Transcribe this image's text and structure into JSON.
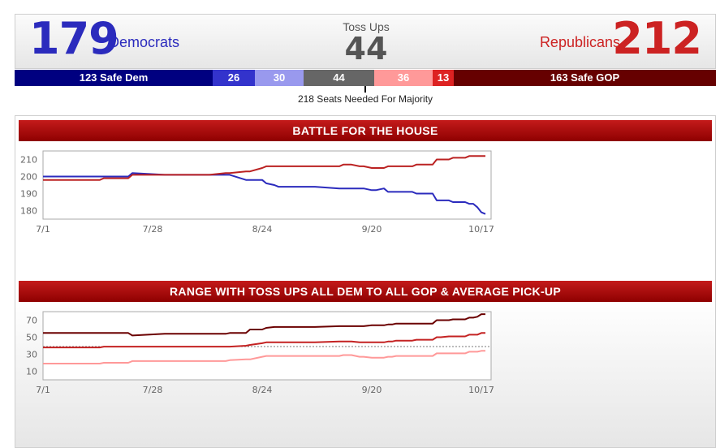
{
  "summary": {
    "dem_count": "179",
    "dem_label": "Democrats",
    "tossup_label": "Toss Ups",
    "tossup_count": "44",
    "gop_label": "Republicans",
    "gop_count": "212"
  },
  "seat_bar": [
    {
      "label": "123 Safe Dem",
      "value": 123,
      "color": "#000080"
    },
    {
      "label": "26",
      "value": 26,
      "color": "#3333cc"
    },
    {
      "label": "30",
      "value": 30,
      "color": "#9999ee"
    },
    {
      "label": "44",
      "value": 44,
      "color": "#666666"
    },
    {
      "label": "36",
      "value": 36,
      "color": "#ff9999"
    },
    {
      "label": "13",
      "value": 13,
      "color": "#dd2222"
    },
    {
      "label": "163 Safe GOP",
      "value": 163,
      "color": "#660000"
    }
  ],
  "majority_text": "218 Seats Needed For Majority",
  "banners": {
    "house": "BATTLE FOR THE HOUSE",
    "range": "RANGE WITH TOSS UPS ALL DEM TO ALL GOP & AVERAGE PICK-UP"
  },
  "chart_data": [
    {
      "type": "line",
      "title": "BATTLE FOR THE HOUSE",
      "x": [
        "7/1",
        "7/15",
        "7/16",
        "7/22",
        "7/23",
        "7/31",
        "8/11",
        "8/15",
        "8/16",
        "8/20",
        "8/21",
        "8/24",
        "8/25",
        "8/27",
        "8/28",
        "9/2",
        "9/3",
        "9/5",
        "9/6",
        "9/12",
        "9/13",
        "9/14",
        "9/15",
        "9/17",
        "9/18",
        "9/20",
        "9/21",
        "9/23",
        "9/24",
        "9/25",
        "9/26",
        "9/30",
        "10/1",
        "10/2",
        "10/5",
        "10/6",
        "10/7",
        "10/9",
        "10/10",
        "10/13",
        "10/14",
        "10/15",
        "10/16",
        "10/17",
        "10/18"
      ],
      "xticks": [
        "7/1",
        "7/28",
        "8/24",
        "9/20",
        "10/17"
      ],
      "ylim": [
        175,
        215
      ],
      "yticks": [
        180,
        190,
        200,
        210
      ],
      "series": [
        {
          "color": "#2b2bbd",
          "values": [
            200,
            200,
            200,
            200,
            202,
            201,
            201,
            201,
            201,
            198,
            198,
            198,
            196,
            195,
            194,
            194,
            194,
            194,
            194,
            193,
            193,
            193,
            193,
            193,
            193,
            192,
            192,
            193,
            191,
            191,
            191,
            191,
            190,
            190,
            190,
            186,
            186,
            186,
            185,
            185,
            184,
            184,
            182,
            179,
            178
          ]
        },
        {
          "color": "#bb2222",
          "values": [
            198,
            198,
            199,
            199,
            201,
            201,
            201,
            202,
            202,
            203,
            203,
            205,
            206,
            206,
            206,
            206,
            206,
            206,
            206,
            206,
            207,
            207,
            207,
            206,
            206,
            205,
            205,
            205,
            206,
            206,
            206,
            206,
            207,
            207,
            207,
            210,
            210,
            210,
            211,
            211,
            212,
            212,
            212,
            212,
            212
          ]
        }
      ]
    },
    {
      "type": "line",
      "title": "RANGE WITH TOSS UPS ALL DEM TO ALL GOP & AVERAGE PICK-UP",
      "x": [
        "7/1",
        "7/15",
        "7/16",
        "7/22",
        "7/23",
        "7/31",
        "8/11",
        "8/15",
        "8/16",
        "8/20",
        "8/21",
        "8/24",
        "8/25",
        "8/27",
        "8/28",
        "9/2",
        "9/3",
        "9/5",
        "9/6",
        "9/12",
        "9/13",
        "9/14",
        "9/15",
        "9/17",
        "9/18",
        "9/20",
        "9/21",
        "9/23",
        "9/24",
        "9/25",
        "9/26",
        "9/30",
        "10/1",
        "10/2",
        "10/5",
        "10/6",
        "10/7",
        "10/9",
        "10/10",
        "10/13",
        "10/14",
        "10/15",
        "10/16",
        "10/17",
        "10/18"
      ],
      "xticks": [
        "7/1",
        "7/28",
        "8/24",
        "9/20",
        "10/17"
      ],
      "ylim": [
        0,
        80
      ],
      "yticks": [
        10,
        30,
        50,
        70
      ],
      "reference_line": 39,
      "series": [
        {
          "color": "#6b0000",
          "values": [
            55,
            55,
            55,
            55,
            52,
            54,
            54,
            54,
            55,
            55,
            59,
            59,
            61,
            62,
            62,
            62,
            62,
            62,
            62,
            63,
            63,
            63,
            63,
            63,
            63,
            64,
            64,
            64,
            65,
            65,
            66,
            66,
            66,
            66,
            66,
            70,
            70,
            70,
            71,
            71,
            73,
            73,
            74,
            77,
            77
          ]
        },
        {
          "color": "#c42222",
          "values": [
            38,
            38,
            39,
            39,
            39,
            39,
            39,
            39,
            39,
            40,
            41,
            43,
            44,
            44,
            44,
            44,
            44,
            44,
            44,
            45,
            45,
            45,
            45,
            44,
            44,
            44,
            44,
            44,
            45,
            45,
            46,
            46,
            47,
            47,
            47,
            50,
            50,
            51,
            51,
            51,
            53,
            53,
            53,
            55,
            55
          ]
        },
        {
          "color": "#ff9999",
          "values": [
            19,
            19,
            20,
            20,
            22,
            22,
            22,
            22,
            23,
            24,
            24,
            27,
            28,
            28,
            28,
            28,
            28,
            28,
            28,
            28,
            29,
            29,
            29,
            27,
            27,
            26,
            26,
            26,
            27,
            27,
            28,
            28,
            28,
            28,
            28,
            31,
            31,
            31,
            31,
            31,
            33,
            33,
            33,
            34,
            34
          ]
        }
      ]
    }
  ]
}
